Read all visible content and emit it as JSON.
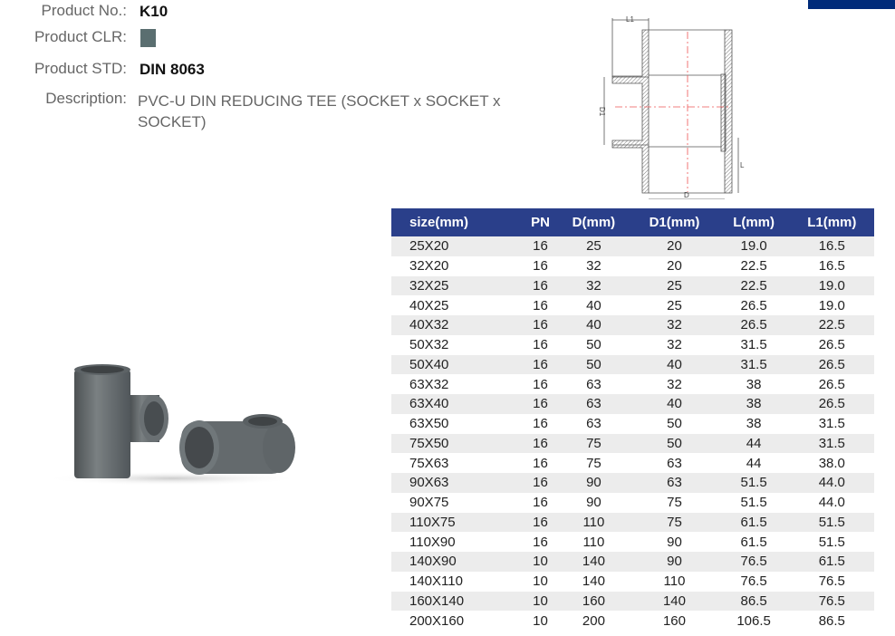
{
  "product": {
    "no_label": "Product No.:",
    "no": "K10",
    "clr_label": "Product CLR:",
    "color": "#5a6e70",
    "std_label": "Product STD:",
    "std": "DIN 8063",
    "desc_label": "Description:",
    "description": "PVC-U DIN REDUCING TEE (SOCKET x SOCKET x SOCKET)"
  },
  "drawing": {
    "labels": [
      "L1",
      "D1",
      "L",
      "D"
    ]
  },
  "table": {
    "headers": [
      "size(mm)",
      "PN",
      "D(mm)",
      "D1(mm)",
      "L(mm)",
      "L1(mm)"
    ],
    "rows": [
      [
        "25X20",
        "16",
        "25",
        "20",
        "19.0",
        "16.5"
      ],
      [
        "32X20",
        "16",
        "32",
        "20",
        "22.5",
        "16.5"
      ],
      [
        "32X25",
        "16",
        "32",
        "25",
        "22.5",
        "19.0"
      ],
      [
        "40X25",
        "16",
        "40",
        "25",
        "26.5",
        "19.0"
      ],
      [
        "40X32",
        "16",
        "40",
        "32",
        "26.5",
        "22.5"
      ],
      [
        "50X32",
        "16",
        "50",
        "32",
        "31.5",
        "26.5"
      ],
      [
        "50X40",
        "16",
        "50",
        "40",
        "31.5",
        "26.5"
      ],
      [
        "63X32",
        "16",
        "63",
        "32",
        "38",
        "26.5"
      ],
      [
        "63X40",
        "16",
        "63",
        "40",
        "38",
        "26.5"
      ],
      [
        "63X50",
        "16",
        "63",
        "50",
        "38",
        "31.5"
      ],
      [
        "75X50",
        "16",
        "75",
        "50",
        "44",
        "31.5"
      ],
      [
        "75X63",
        "16",
        "75",
        "63",
        "44",
        "38.0"
      ],
      [
        "90X63",
        "16",
        "90",
        "63",
        "51.5",
        "44.0"
      ],
      [
        "90X75",
        "16",
        "90",
        "75",
        "51.5",
        "44.0"
      ],
      [
        "110X75",
        "16",
        "110",
        "75",
        "61.5",
        "51.5"
      ],
      [
        "110X90",
        "16",
        "110",
        "90",
        "61.5",
        "51.5"
      ],
      [
        "140X90",
        "10",
        "140",
        "90",
        "76.5",
        "61.5"
      ],
      [
        "140X110",
        "10",
        "140",
        "110",
        "76.5",
        "76.5"
      ],
      [
        "160X140",
        "10",
        "160",
        "140",
        "86.5",
        "76.5"
      ],
      [
        "200X160",
        "10",
        "200",
        "160",
        "106.5",
        "86.5"
      ]
    ]
  }
}
